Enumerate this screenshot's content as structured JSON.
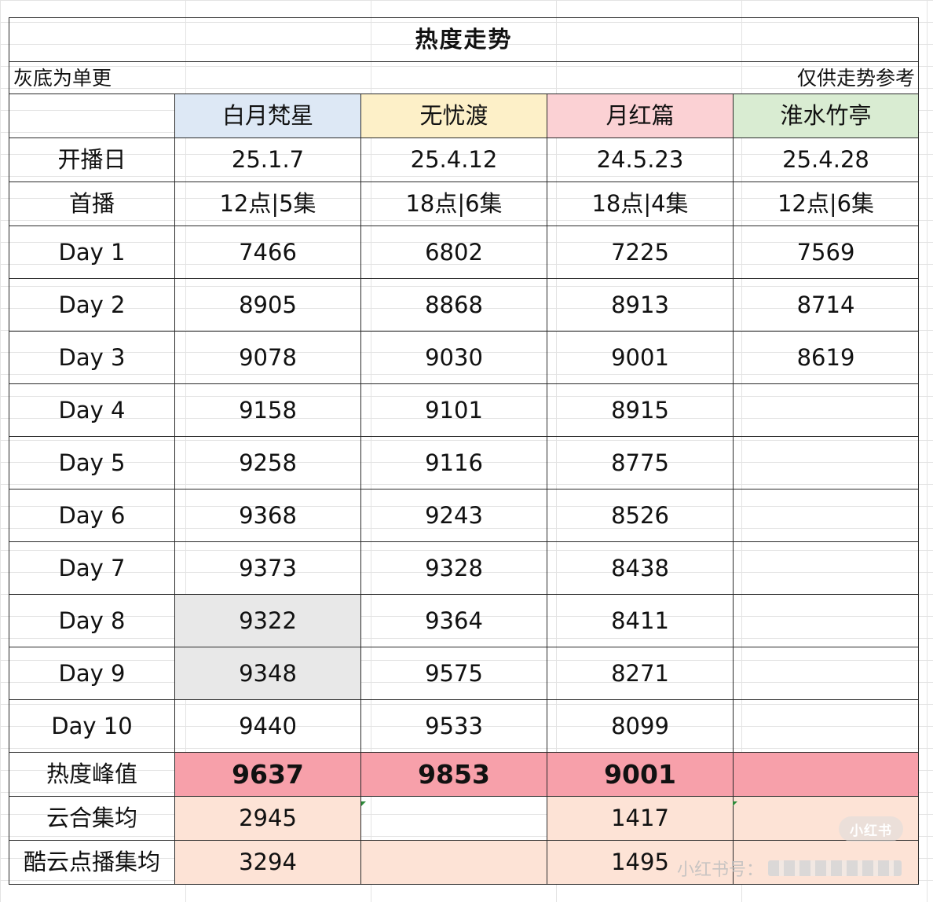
{
  "title": "热度走势",
  "notes": {
    "left": "灰底为单更",
    "right": "仅供走势参考"
  },
  "columns": [
    "白月梵星",
    "无忧渡",
    "月红篇",
    "淮水竹亭"
  ],
  "rows": {
    "start_date": {
      "label": "开播日",
      "values": [
        "25.1.7",
        "25.4.12",
        "24.5.23",
        "25.4.28"
      ]
    },
    "premiere": {
      "label": "首播",
      "values": [
        "12点|5集",
        "18点|6集",
        "18点|4集",
        "12点|6集"
      ]
    },
    "days": [
      {
        "label": "Day 1",
        "values": [
          "7466",
          "6802",
          "7225",
          "7569"
        ]
      },
      {
        "label": "Day 2",
        "values": [
          "8905",
          "8868",
          "8913",
          "8714"
        ]
      },
      {
        "label": "Day 3",
        "values": [
          "9078",
          "9030",
          "9001",
          "8619"
        ]
      },
      {
        "label": "Day 4",
        "values": [
          "9158",
          "9101",
          "8915",
          ""
        ]
      },
      {
        "label": "Day 5",
        "values": [
          "9258",
          "9116",
          "8775",
          ""
        ]
      },
      {
        "label": "Day 6",
        "values": [
          "9368",
          "9243",
          "8526",
          ""
        ]
      },
      {
        "label": "Day 7",
        "values": [
          "9373",
          "9328",
          "8438",
          ""
        ]
      },
      {
        "label": "Day 8",
        "values": [
          "9322",
          "9364",
          "8411",
          ""
        ]
      },
      {
        "label": "Day 9",
        "values": [
          "9348",
          "9575",
          "8271",
          ""
        ]
      },
      {
        "label": "Day 10",
        "values": [
          "9440",
          "9533",
          "8099",
          ""
        ]
      }
    ],
    "peak": {
      "label": "热度峰值",
      "values": [
        "9637",
        "9853",
        "9001",
        ""
      ]
    },
    "yunhe_avg": {
      "label": "云合集均",
      "values": [
        "2945",
        "",
        "1417",
        ""
      ]
    },
    "kuyun_avg": {
      "label": "酷云点播集均",
      "values": [
        "3294",
        "",
        "1495",
        ""
      ]
    }
  },
  "watermark": {
    "logo": "小红书",
    "text": "小红书号："
  },
  "colors": {
    "col1_header": "#dde8f5",
    "col2_header": "#fdf0c8",
    "col3_header": "#fbd1d4",
    "col4_header": "#d9ecd2",
    "single_update_gray": "#e8e8e8",
    "peak_row": "#f7a0aa",
    "avg_rows": "#fde3d6"
  }
}
